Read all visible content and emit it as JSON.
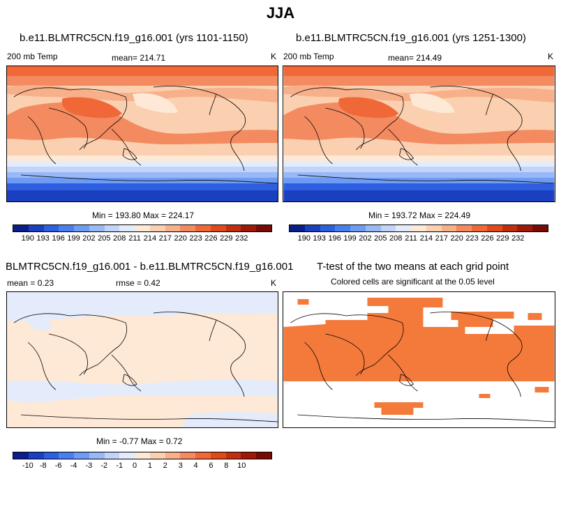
{
  "title": "JJA",
  "panels": [
    {
      "title": "b.e11.BLMTRC5CN.f19_g16.001 (yrs 1101-1150)",
      "left_label": "200 mb Temp",
      "center_label": "mean= 214.71",
      "units": "K",
      "minmax": "Min = 193.80 Max = 224.17"
    },
    {
      "title": "b.e11.BLMTRC5CN.f19_g16.001 (yrs 1251-1300)",
      "left_label": "200 mb Temp",
      "center_label": "mean= 214.49",
      "units": "K",
      "minmax": "Min = 193.72 Max = 224.49"
    },
    {
      "title": "BLMTRC5CN.f19_g16.001 - b.e11.BLMTRC5CN.f19_g16.001",
      "left_label": "mean =   0.23",
      "center_label": "rmse =   0.42",
      "units": "K",
      "minmax": "Min =  -0.77 Max =   0.72"
    },
    {
      "title": "T-test of the two means at each grid point",
      "subtitle": "Colored cells are significant at the 0.05 level"
    }
  ],
  "colorbar_abs": {
    "colors": [
      "#0a1e8c",
      "#1a3fc0",
      "#2e5fe0",
      "#4a7ff0",
      "#6e9cf4",
      "#98b8f6",
      "#c2d4fa",
      "#e4ecfc",
      "#fde9d6",
      "#fbd0b0",
      "#f8b08a",
      "#f48a60",
      "#f06838",
      "#e04a18",
      "#c03010",
      "#a01808",
      "#7a0a04"
    ],
    "labels": [
      "190",
      "193",
      "196",
      "199",
      "202",
      "205",
      "208",
      "211",
      "214",
      "217",
      "220",
      "223",
      "226",
      "229",
      "232"
    ]
  },
  "colorbar_diff": {
    "colors": [
      "#0a1e8c",
      "#1a3fc0",
      "#2e5fe0",
      "#4a7ff0",
      "#6e9cf4",
      "#98b8f6",
      "#c2d4fa",
      "#e4ecfc",
      "#fde9d6",
      "#fbd0b0",
      "#f8b08a",
      "#f48a60",
      "#f06838",
      "#e04a18",
      "#c03010",
      "#a01808",
      "#7a0a04"
    ],
    "labels": [
      "-10",
      "-8",
      "-6",
      "-4",
      "-3",
      "-2",
      "-1",
      "0",
      "1",
      "2",
      "3",
      "4",
      "6",
      "8",
      "10"
    ]
  },
  "significance_color": "#f47a3c"
}
